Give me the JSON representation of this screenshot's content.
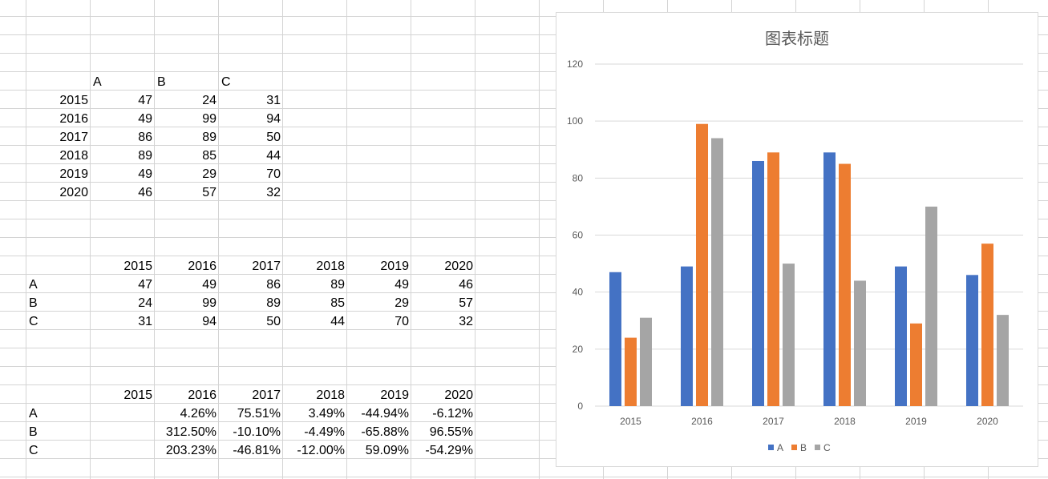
{
  "table1": {
    "headers": [
      "A",
      "B",
      "C"
    ],
    "rows": [
      {
        "year": "2015",
        "values": [
          "47",
          "24",
          "31"
        ]
      },
      {
        "year": "2016",
        "values": [
          "49",
          "99",
          "94"
        ]
      },
      {
        "year": "2017",
        "values": [
          "86",
          "89",
          "50"
        ]
      },
      {
        "year": "2018",
        "values": [
          "89",
          "85",
          "44"
        ]
      },
      {
        "year": "2019",
        "values": [
          "49",
          "29",
          "70"
        ]
      },
      {
        "year": "2020",
        "values": [
          "46",
          "57",
          "32"
        ]
      }
    ]
  },
  "table2": {
    "headers": [
      "2015",
      "2016",
      "2017",
      "2018",
      "2019",
      "2020"
    ],
    "rows": [
      {
        "label": "A",
        "values": [
          "47",
          "49",
          "86",
          "89",
          "49",
          "46"
        ]
      },
      {
        "label": "B",
        "values": [
          "24",
          "99",
          "89",
          "85",
          "29",
          "57"
        ]
      },
      {
        "label": "C",
        "values": [
          "31",
          "94",
          "50",
          "44",
          "70",
          "32"
        ]
      }
    ]
  },
  "table3": {
    "headers": [
      "2015",
      "2016",
      "2017",
      "2018",
      "2019",
      "2020"
    ],
    "rows": [
      {
        "label": "A",
        "values": [
          "",
          "4.26%",
          "75.51%",
          "3.49%",
          "-44.94%",
          "-6.12%"
        ]
      },
      {
        "label": "B",
        "values": [
          "",
          "312.50%",
          "-10.10%",
          "-4.49%",
          "-65.88%",
          "96.55%"
        ]
      },
      {
        "label": "C",
        "values": [
          "",
          "203.23%",
          "-46.81%",
          "-12.00%",
          "59.09%",
          "-54.29%"
        ]
      }
    ]
  },
  "chart_data": {
    "type": "bar",
    "title": "图表标题",
    "categories": [
      "2015",
      "2016",
      "2017",
      "2018",
      "2019",
      "2020"
    ],
    "series": [
      {
        "name": "A",
        "values": [
          47,
          49,
          86,
          89,
          49,
          46
        ],
        "color": "#4472c4"
      },
      {
        "name": "B",
        "values": [
          24,
          99,
          89,
          85,
          29,
          57
        ],
        "color": "#ed7d31"
      },
      {
        "name": "C",
        "values": [
          31,
          94,
          50,
          44,
          70,
          32
        ],
        "color": "#a5a5a5"
      }
    ],
    "xlabel": "",
    "ylabel": "",
    "ylim": [
      0,
      120
    ],
    "yticks": [
      0,
      20,
      40,
      60,
      80,
      100,
      120
    ],
    "grid": true,
    "legend_position": "bottom"
  }
}
